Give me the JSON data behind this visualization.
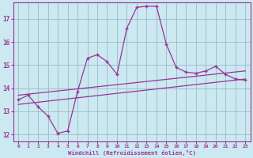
{
  "xlabel": "Windchill (Refroidissement éolien,°C)",
  "xlim": [
    -0.5,
    23.5
  ],
  "ylim": [
    11.7,
    17.7
  ],
  "yticks": [
    12,
    13,
    14,
    15,
    16,
    17
  ],
  "xticks": [
    0,
    1,
    2,
    3,
    4,
    5,
    6,
    7,
    8,
    9,
    10,
    11,
    12,
    13,
    14,
    15,
    16,
    17,
    18,
    19,
    20,
    21,
    22,
    23
  ],
  "line_color": "#993399",
  "bg_color": "#cce8f0",
  "grid_color": "#99bbcc",
  "data_x": [
    0,
    1,
    2,
    3,
    4,
    5,
    6,
    7,
    8,
    9,
    10,
    11,
    12,
    13,
    14,
    15,
    16,
    17,
    18,
    19,
    20,
    21,
    22,
    23
  ],
  "data_y": [
    13.5,
    13.7,
    13.2,
    12.8,
    12.05,
    12.15,
    13.85,
    15.3,
    15.45,
    15.15,
    14.6,
    16.6,
    17.5,
    17.55,
    17.55,
    15.9,
    14.9,
    14.7,
    14.65,
    14.75,
    14.95,
    14.6,
    14.4,
    14.35
  ],
  "trend1_x": [
    0,
    23
  ],
  "trend1_y": [
    13.3,
    14.4
  ],
  "trend2_x": [
    0,
    23
  ],
  "trend2_y": [
    13.7,
    14.75
  ]
}
